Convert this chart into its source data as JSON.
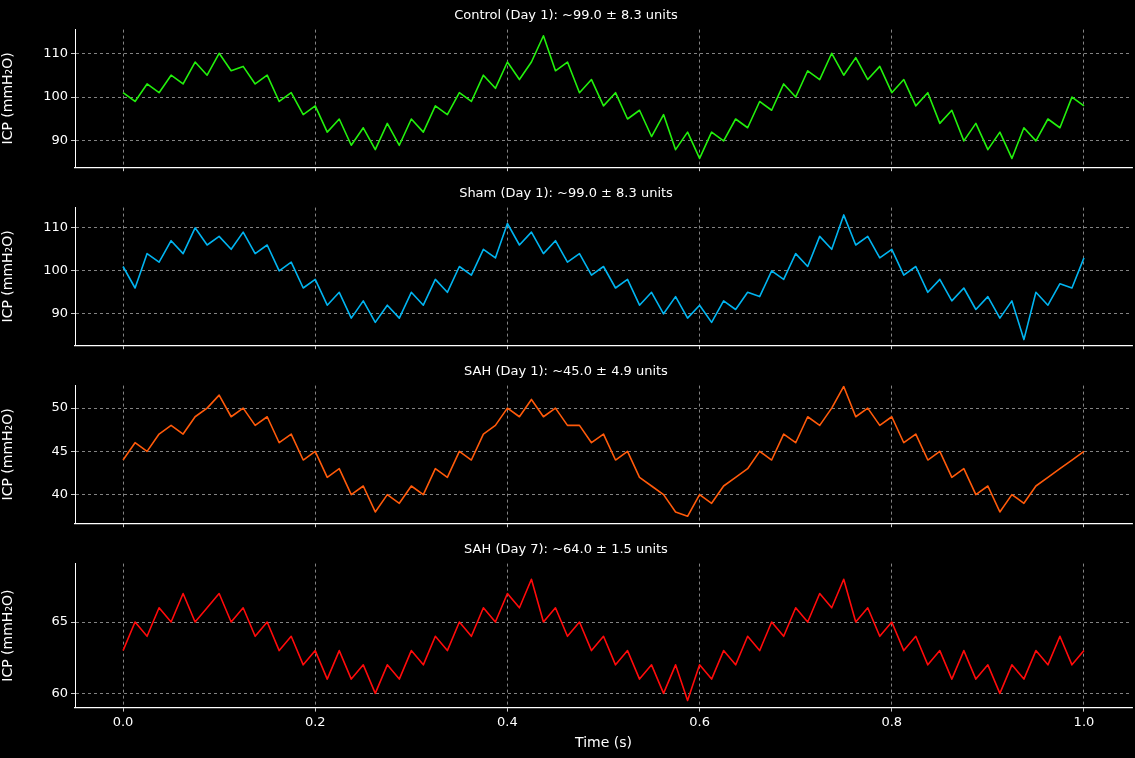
{
  "chart_data": [
    {
      "type": "line",
      "title": "Control (Day 1): ~99.0 ± 8.3 units",
      "ylabel": "ICP (mmH₂O)",
      "xlim": [
        -0.05,
        1.05
      ],
      "xticks": [
        0,
        0.2,
        0.4,
        0.6,
        0.8,
        1
      ],
      "ylim": [
        84,
        115.4
      ],
      "yticks": [
        90,
        100,
        110
      ],
      "grid": true,
      "tick_labels": "y",
      "marker": "none",
      "line_style": "solid",
      "x": [
        0,
        0.0125,
        0.025,
        0.0375,
        0.05,
        0.0625,
        0.075,
        0.0875,
        0.1,
        0.1125,
        0.125,
        0.1375,
        0.15,
        0.1625,
        0.175,
        0.1875,
        0.2,
        0.2125,
        0.225,
        0.2375,
        0.25,
        0.2625,
        0.275,
        0.2875,
        0.3,
        0.3125,
        0.325,
        0.3375,
        0.35,
        0.3625,
        0.375,
        0.3875,
        0.4,
        0.4125,
        0.425,
        0.4375,
        0.45,
        0.4625,
        0.475,
        0.4875,
        0.5,
        0.5125,
        0.525,
        0.5375,
        0.55,
        0.5625,
        0.575,
        0.5875,
        0.6,
        0.6125,
        0.625,
        0.6375,
        0.65,
        0.6625,
        0.675,
        0.6875,
        0.7,
        0.7125,
        0.725,
        0.7375,
        0.75,
        0.7625,
        0.775,
        0.7875,
        0.8,
        0.8125,
        0.825,
        0.8375,
        0.85,
        0.8625,
        0.875,
        0.8875,
        0.9,
        0.9125,
        0.925,
        0.9375,
        0.95,
        0.9625,
        0.975,
        0.9875,
        1
      ],
      "series": [
        {
          "color": "#22f00c",
          "values": [
            101,
            99,
            103,
            101,
            105,
            103,
            108,
            105,
            110,
            106,
            107,
            103,
            105,
            99,
            101,
            96,
            98,
            92,
            95,
            89,
            93,
            88,
            94,
            89,
            95,
            92,
            98,
            96,
            101,
            99,
            105,
            102,
            108,
            104,
            108,
            114,
            106,
            108,
            101,
            104,
            98,
            101,
            95,
            97,
            91,
            96,
            88,
            92,
            86,
            92,
            90,
            95,
            93,
            99,
            97,
            103,
            100,
            106,
            104,
            110,
            105,
            109,
            104,
            107,
            101,
            104,
            98,
            101,
            94,
            97,
            90,
            94,
            88,
            92,
            86,
            93,
            90,
            95,
            93,
            100,
            98
          ]
        }
      ]
    },
    {
      "type": "line",
      "title": "Sham (Day 1): ~99.0 ± 8.3 units",
      "ylabel": "ICP (mmH₂O)",
      "xlim": [
        -0.05,
        1.05
      ],
      "xticks": [
        0,
        0.2,
        0.4,
        0.6,
        0.8,
        1
      ],
      "ylim": [
        82.7,
        114.7
      ],
      "yticks": [
        90,
        100,
        110
      ],
      "grid": true,
      "tick_labels": "y",
      "marker": "none",
      "line_style": "solid",
      "x": [
        0,
        0.0125,
        0.025,
        0.0375,
        0.05,
        0.0625,
        0.075,
        0.0875,
        0.1,
        0.1125,
        0.125,
        0.1375,
        0.15,
        0.1625,
        0.175,
        0.1875,
        0.2,
        0.2125,
        0.225,
        0.2375,
        0.25,
        0.2625,
        0.275,
        0.2875,
        0.3,
        0.3125,
        0.325,
        0.3375,
        0.35,
        0.3625,
        0.375,
        0.3875,
        0.4,
        0.4125,
        0.425,
        0.4375,
        0.45,
        0.4625,
        0.475,
        0.4875,
        0.5,
        0.5125,
        0.525,
        0.5375,
        0.55,
        0.5625,
        0.575,
        0.5875,
        0.6,
        0.6125,
        0.625,
        0.6375,
        0.65,
        0.6625,
        0.675,
        0.6875,
        0.7,
        0.7125,
        0.725,
        0.7375,
        0.75,
        0.7625,
        0.775,
        0.7875,
        0.8,
        0.8125,
        0.825,
        0.8375,
        0.85,
        0.8625,
        0.875,
        0.8875,
        0.9,
        0.9125,
        0.925,
        0.9375,
        0.95,
        0.9625,
        0.975,
        0.9875,
        1
      ],
      "series": [
        {
          "color": "#00b4f0",
          "values": [
            101,
            96,
            104,
            102,
            107,
            104,
            110,
            106,
            108,
            105,
            109,
            104,
            106,
            100,
            102,
            96,
            98,
            92,
            95,
            89,
            93,
            88,
            92,
            89,
            95,
            92,
            98,
            95,
            101,
            99,
            105,
            103,
            111,
            106,
            109,
            104,
            107,
            102,
            104,
            99,
            101,
            96,
            98,
            92,
            95,
            90,
            94,
            89,
            92,
            88,
            93,
            91,
            95,
            94,
            100,
            98,
            104,
            101,
            108,
            105,
            113,
            106,
            108,
            103,
            105,
            99,
            101,
            95,
            98,
            93,
            96,
            91,
            94,
            89,
            93,
            84,
            95,
            92,
            97,
            96,
            103
          ]
        }
      ]
    },
    {
      "type": "line",
      "title": "SAH (Day 1): ~45.0 ± 4.9 units",
      "ylabel": "ICP (mmH₂O)",
      "xlim": [
        -0.05,
        1.05
      ],
      "xticks": [
        0,
        0.2,
        0.4,
        0.6,
        0.8,
        1
      ],
      "ylim": [
        36.7,
        52.6
      ],
      "yticks": [
        40,
        45,
        50
      ],
      "grid": true,
      "tick_labels": "y",
      "marker": "none",
      "line_style": "solid",
      "x": [
        0,
        0.0125,
        0.025,
        0.0375,
        0.05,
        0.0625,
        0.075,
        0.0875,
        0.1,
        0.1125,
        0.125,
        0.1375,
        0.15,
        0.1625,
        0.175,
        0.1875,
        0.2,
        0.2125,
        0.225,
        0.2375,
        0.25,
        0.2625,
        0.275,
        0.2875,
        0.3,
        0.3125,
        0.325,
        0.3375,
        0.35,
        0.3625,
        0.375,
        0.3875,
        0.4,
        0.4125,
        0.425,
        0.4375,
        0.45,
        0.4625,
        0.475,
        0.4875,
        0.5,
        0.5125,
        0.525,
        0.5375,
        0.55,
        0.5625,
        0.575,
        0.5875,
        0.6,
        0.6125,
        0.625,
        0.6375,
        0.65,
        0.6625,
        0.675,
        0.6875,
        0.7,
        0.7125,
        0.725,
        0.7375,
        0.75,
        0.7625,
        0.775,
        0.7875,
        0.8,
        0.8125,
        0.825,
        0.8375,
        0.85,
        0.8625,
        0.875,
        0.8875,
        0.9,
        0.9125,
        0.925,
        0.9375,
        0.95,
        0.9625,
        0.975,
        0.9875,
        1
      ],
      "series": [
        {
          "color": "#ff5a0a",
          "values": [
            44,
            46,
            45,
            47,
            48,
            47,
            49,
            50,
            51.5,
            49,
            50,
            48,
            49,
            46,
            47,
            44,
            45,
            42,
            43,
            40,
            41,
            38,
            40,
            39,
            41,
            40,
            43,
            42,
            45,
            44,
            47,
            48,
            50,
            49,
            51,
            49,
            50,
            48,
            48,
            46,
            47,
            44,
            45,
            42,
            41,
            40,
            38,
            37.5,
            40,
            39,
            41,
            42,
            43,
            45,
            44,
            47,
            46,
            49,
            48,
            50,
            52.5,
            49,
            50,
            48,
            49,
            46,
            47,
            44,
            45,
            42,
            43,
            40,
            41,
            38,
            40,
            39,
            41,
            42,
            43,
            44,
            45
          ]
        }
      ]
    },
    {
      "type": "line",
      "title": "SAH (Day 7): ~64.0 ± 1.5 units",
      "ylabel": "ICP (mmH₂O)",
      "xlabel": "Time (s)",
      "xlim": [
        -0.05,
        1.05
      ],
      "xticks": [
        {
          "value": 0,
          "label": "0.0"
        },
        0.2,
        0.4,
        0.6,
        0.8,
        {
          "value": 1,
          "label": "1.0"
        }
      ],
      "ylim": [
        59,
        69.1
      ],
      "yticks": [
        60,
        65
      ],
      "grid": true,
      "marker": "none",
      "line_style": "solid",
      "x": [
        0,
        0.0125,
        0.025,
        0.0375,
        0.05,
        0.0625,
        0.075,
        0.0875,
        0.1,
        0.1125,
        0.125,
        0.1375,
        0.15,
        0.1625,
        0.175,
        0.1875,
        0.2,
        0.2125,
        0.225,
        0.2375,
        0.25,
        0.2625,
        0.275,
        0.2875,
        0.3,
        0.3125,
        0.325,
        0.3375,
        0.35,
        0.3625,
        0.375,
        0.3875,
        0.4,
        0.4125,
        0.425,
        0.4375,
        0.45,
        0.4625,
        0.475,
        0.4875,
        0.5,
        0.5125,
        0.525,
        0.5375,
        0.55,
        0.5625,
        0.575,
        0.5875,
        0.6,
        0.6125,
        0.625,
        0.6375,
        0.65,
        0.6625,
        0.675,
        0.6875,
        0.7,
        0.7125,
        0.725,
        0.7375,
        0.75,
        0.7625,
        0.775,
        0.7875,
        0.8,
        0.8125,
        0.825,
        0.8375,
        0.85,
        0.8625,
        0.875,
        0.8875,
        0.9,
        0.9125,
        0.925,
        0.9375,
        0.95,
        0.9625,
        0.975,
        0.9875,
        1
      ],
      "series": [
        {
          "color": "#ff0a0a",
          "values": [
            63,
            65,
            64,
            66,
            65,
            67,
            65,
            66,
            67,
            65,
            66,
            64,
            65,
            63,
            64,
            62,
            63,
            61,
            63,
            61,
            62,
            60,
            62,
            61,
            63,
            62,
            64,
            63,
            65,
            64,
            66,
            65,
            67,
            66,
            68,
            65,
            66,
            64,
            65,
            63,
            64,
            62,
            63,
            61,
            62,
            60,
            62,
            59.5,
            62,
            61,
            63,
            62,
            64,
            63,
            65,
            64,
            66,
            65,
            67,
            66,
            68,
            65,
            66,
            64,
            65,
            63,
            64,
            62,
            63,
            61,
            63,
            61,
            62,
            60,
            62,
            61,
            63,
            62,
            64,
            62,
            63
          ]
        }
      ]
    }
  ]
}
